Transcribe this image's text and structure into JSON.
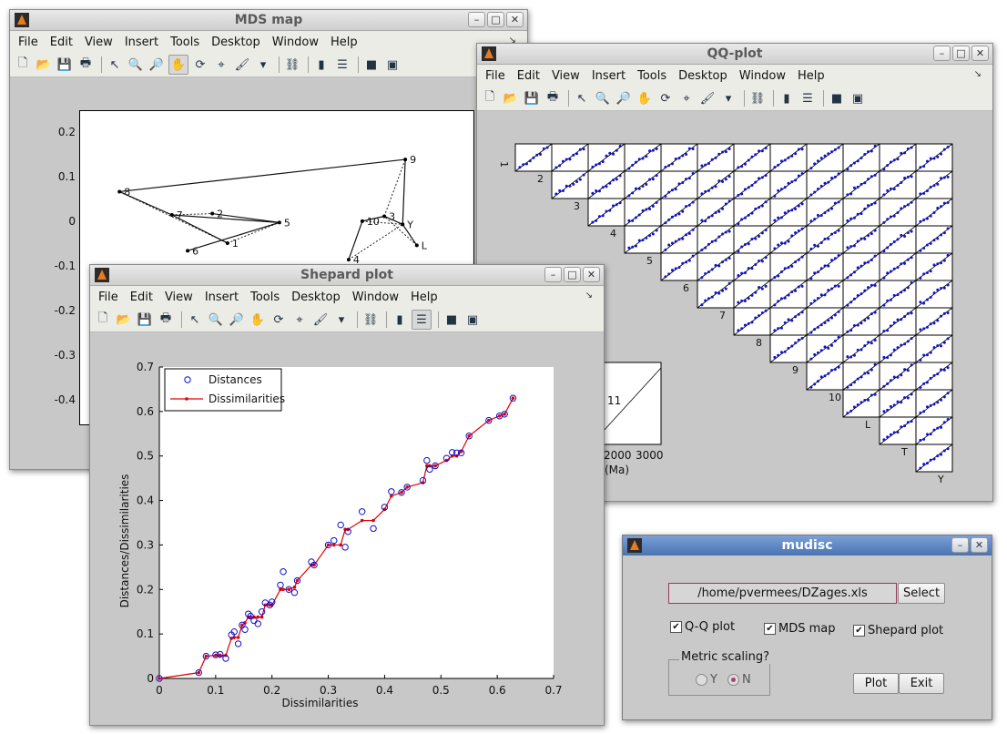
{
  "menu": [
    "File",
    "Edit",
    "View",
    "Insert",
    "Tools",
    "Desktop",
    "Window",
    "Help"
  ],
  "mds": {
    "title": "MDS map",
    "yticks": [
      "0.2",
      "0.1",
      "0",
      "-0.1",
      "-0.2",
      "-0.3",
      "-0.4"
    ],
    "points": [
      {
        "label": "1",
        "x": 0.031,
        "y": -0.045
      },
      {
        "label": "2",
        "x": 0.002,
        "y": 0.021
      },
      {
        "label": "5",
        "x": 0.13,
        "y": 0.001
      },
      {
        "label": "6",
        "x": -0.045,
        "y": -0.062
      },
      {
        "label": "7",
        "x": -0.075,
        "y": 0.018
      },
      {
        "label": "8",
        "x": -0.175,
        "y": 0.07
      },
      {
        "label": "9",
        "x": 0.37,
        "y": 0.142
      },
      {
        "label": "10",
        "x": 0.288,
        "y": 0.004
      },
      {
        "label": "3",
        "x": 0.33,
        "y": 0.015
      },
      {
        "label": "Y",
        "x": 0.365,
        "y": -0.003
      },
      {
        "label": "L",
        "x": 0.392,
        "y": -0.05
      },
      {
        "label": "4",
        "x": 0.262,
        "y": -0.082
      }
    ],
    "solid_links": [
      [
        1,
        2
      ],
      [
        2,
        3
      ],
      [
        2,
        4
      ],
      [
        4,
        5
      ],
      [
        5,
        6
      ],
      [
        4,
        0
      ],
      [
        8,
        7
      ],
      [
        7,
        11
      ],
      [
        9,
        8
      ],
      [
        9,
        6
      ],
      [
        9,
        10
      ]
    ],
    "dotted_links": [
      [
        0,
        2
      ],
      [
        4,
        1
      ],
      [
        5,
        0
      ],
      [
        8,
        6
      ],
      [
        7,
        9
      ],
      [
        11,
        9
      ],
      [
        10,
        8
      ]
    ]
  },
  "qq": {
    "title": "QQ-plot",
    "labels": [
      "1",
      "2",
      "3",
      "4",
      "5",
      "6",
      "7",
      "8",
      "9",
      "10",
      "L",
      "T",
      "Y"
    ],
    "inset_ticks": [
      "2000",
      "3000"
    ],
    "inset_text": "11",
    "inset_xlabel": "(Ma)"
  },
  "shepard": {
    "title": "Shepard plot",
    "xlabel": "Dissimilarities",
    "ylabel": "Distances/Dissimilarities",
    "xticks": [
      "0",
      "0.1",
      "0.2",
      "0.3",
      "0.4",
      "0.5",
      "0.6",
      "0.7"
    ],
    "yticks": [
      "0",
      "0.1",
      "0.2",
      "0.3",
      "0.4",
      "0.5",
      "0.6",
      "0.7"
    ],
    "legend": [
      "Distances",
      "Dissimilarities"
    ],
    "chart_data": {
      "type": "scatter",
      "xlim": [
        0,
        0.7
      ],
      "ylim": [
        0,
        0.7
      ],
      "xlabel": "Dissimilarities",
      "ylabel": "Distances/Dissimilarities",
      "series": [
        {
          "name": "Distances",
          "x": [
            0,
            0.07,
            0.083,
            0.1,
            0.108,
            0.118,
            0.128,
            0.133,
            0.14,
            0.147,
            0.152,
            0.158,
            0.162,
            0.168,
            0.175,
            0.182,
            0.188,
            0.196,
            0.2,
            0.215,
            0.22,
            0.23,
            0.24,
            0.245,
            0.27,
            0.275,
            0.3,
            0.31,
            0.322,
            0.33,
            0.335,
            0.36,
            0.38,
            0.4,
            0.412,
            0.43,
            0.44,
            0.468,
            0.475,
            0.48,
            0.49,
            0.51,
            0.52,
            0.528,
            0.536,
            0.55,
            0.585,
            0.604,
            0.613,
            0.628
          ],
          "y": [
            0,
            0.013,
            0.05,
            0.053,
            0.054,
            0.045,
            0.098,
            0.105,
            0.078,
            0.12,
            0.11,
            0.145,
            0.14,
            0.13,
            0.123,
            0.15,
            0.17,
            0.165,
            0.172,
            0.21,
            0.24,
            0.2,
            0.193,
            0.22,
            0.262,
            0.255,
            0.3,
            0.31,
            0.345,
            0.295,
            0.33,
            0.375,
            0.337,
            0.385,
            0.42,
            0.418,
            0.43,
            0.445,
            0.49,
            0.47,
            0.478,
            0.495,
            0.508,
            0.507,
            0.507,
            0.545,
            0.58,
            0.59,
            0.594,
            0.63
          ]
        },
        {
          "name": "Dissimilarities",
          "x": [
            0,
            0.07,
            0.083,
            0.1,
            0.108,
            0.118,
            0.128,
            0.133,
            0.14,
            0.147,
            0.152,
            0.158,
            0.162,
            0.168,
            0.175,
            0.182,
            0.188,
            0.196,
            0.2,
            0.215,
            0.22,
            0.23,
            0.24,
            0.245,
            0.27,
            0.275,
            0.3,
            0.31,
            0.322,
            0.33,
            0.335,
            0.36,
            0.38,
            0.4,
            0.412,
            0.43,
            0.44,
            0.468,
            0.475,
            0.48,
            0.49,
            0.51,
            0.52,
            0.528,
            0.536,
            0.55,
            0.585,
            0.604,
            0.613,
            0.628
          ],
          "y": [
            0,
            0.013,
            0.05,
            0.052,
            0.052,
            0.052,
            0.09,
            0.092,
            0.092,
            0.12,
            0.125,
            0.138,
            0.138,
            0.138,
            0.138,
            0.138,
            0.165,
            0.165,
            0.165,
            0.2,
            0.2,
            0.2,
            0.205,
            0.22,
            0.255,
            0.255,
            0.3,
            0.3,
            0.3,
            0.335,
            0.335,
            0.355,
            0.355,
            0.38,
            0.41,
            0.418,
            0.43,
            0.44,
            0.478,
            0.478,
            0.478,
            0.49,
            0.5,
            0.5,
            0.51,
            0.545,
            0.58,
            0.59,
            0.594,
            0.63
          ]
        }
      ]
    }
  },
  "mudisc": {
    "title": "mudisc",
    "path": "/home/pvermees/DZages.xls",
    "select": "Select",
    "cb_qq": "Q-Q plot",
    "cb_mds": "MDS map",
    "cb_shepard": "Shepard plot",
    "metric_label": "Metric scaling?",
    "radio_y": "Y",
    "radio_n": "N",
    "plot": "Plot",
    "exit": "Exit"
  }
}
